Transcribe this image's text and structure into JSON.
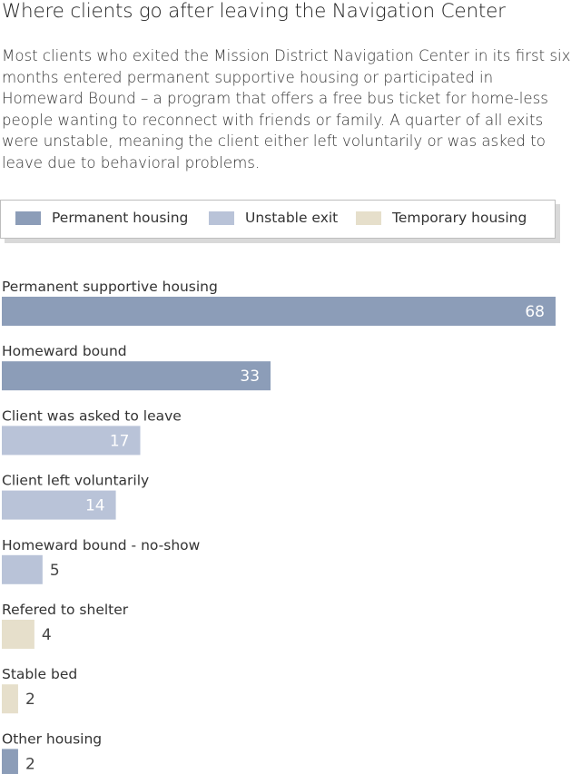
{
  "title": "Where clients go after leaving the Navigation Center",
  "description": "Most clients who exited the Mission District Navigation Center in its first six months entered permanent supportive housing or participated in Homeward Bound – a program that offers a free bus ticket for home-less people wanting to reconnect with friends or family. A quarter of all exits were unstable, meaning the client either left voluntarily or was asked to leave due to behavioral problems.",
  "legend": [
    {
      "label": "Permanent housing",
      "color": "#8c9db8"
    },
    {
      "label": "Unstable exit",
      "color": "#b9c3d8"
    },
    {
      "label": "Temporary housing",
      "color": "#e6dfcb"
    }
  ],
  "chart_data": {
    "type": "bar",
    "orientation": "horizontal",
    "categories": [
      "Permanent supportive housing",
      "Homeward bound",
      "Client was asked to leave",
      "Client left voluntarily",
      "Homeward bound - no-show",
      "Refered to shelter",
      "Stable bed",
      "Other housing"
    ],
    "values": [
      68,
      33,
      17,
      14,
      5,
      4,
      2,
      2
    ],
    "groups": [
      "Permanent housing",
      "Permanent housing",
      "Unstable exit",
      "Unstable exit",
      "Unstable exit",
      "Temporary housing",
      "Temporary housing",
      "Permanent housing"
    ],
    "xlim": [
      0,
      68
    ]
  }
}
